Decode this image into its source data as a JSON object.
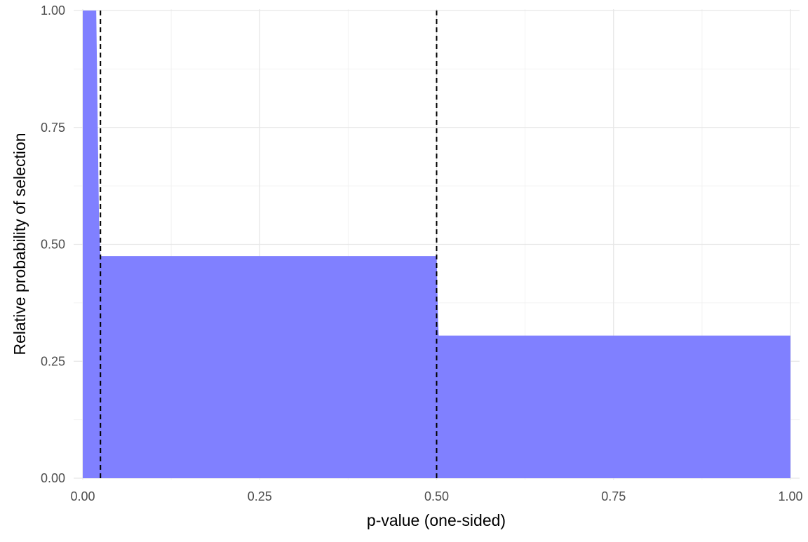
{
  "chart_data": {
    "type": "area",
    "xlabel": "p-value (one-sided)",
    "ylabel": "Relative probability of selection",
    "xlim": [
      0,
      1
    ],
    "ylim": [
      0,
      1
    ],
    "x_ticks": [
      "0.00",
      "0.25",
      "0.50",
      "0.75",
      "1.00"
    ],
    "y_ticks": [
      "0.00",
      "0.25",
      "0.50",
      "0.75",
      "1.00"
    ],
    "grid": true,
    "fill_color": "#8080ff",
    "series": [
      {
        "x": [
          0,
          0.019,
          0.02,
          0.021,
          0.022,
          0.023,
          0.025,
          0.5,
          0.502,
          0.503,
          1.0
        ],
        "y": [
          1.0,
          1.0,
          0.89,
          0.77,
          0.66,
          0.55,
          0.475,
          0.475,
          0.34,
          0.305,
          0.305
        ]
      }
    ],
    "vlines": [
      {
        "x": 0.025,
        "style": "dashed",
        "color": "#000000"
      },
      {
        "x": 0.5,
        "style": "dashed",
        "color": "#000000"
      }
    ]
  }
}
